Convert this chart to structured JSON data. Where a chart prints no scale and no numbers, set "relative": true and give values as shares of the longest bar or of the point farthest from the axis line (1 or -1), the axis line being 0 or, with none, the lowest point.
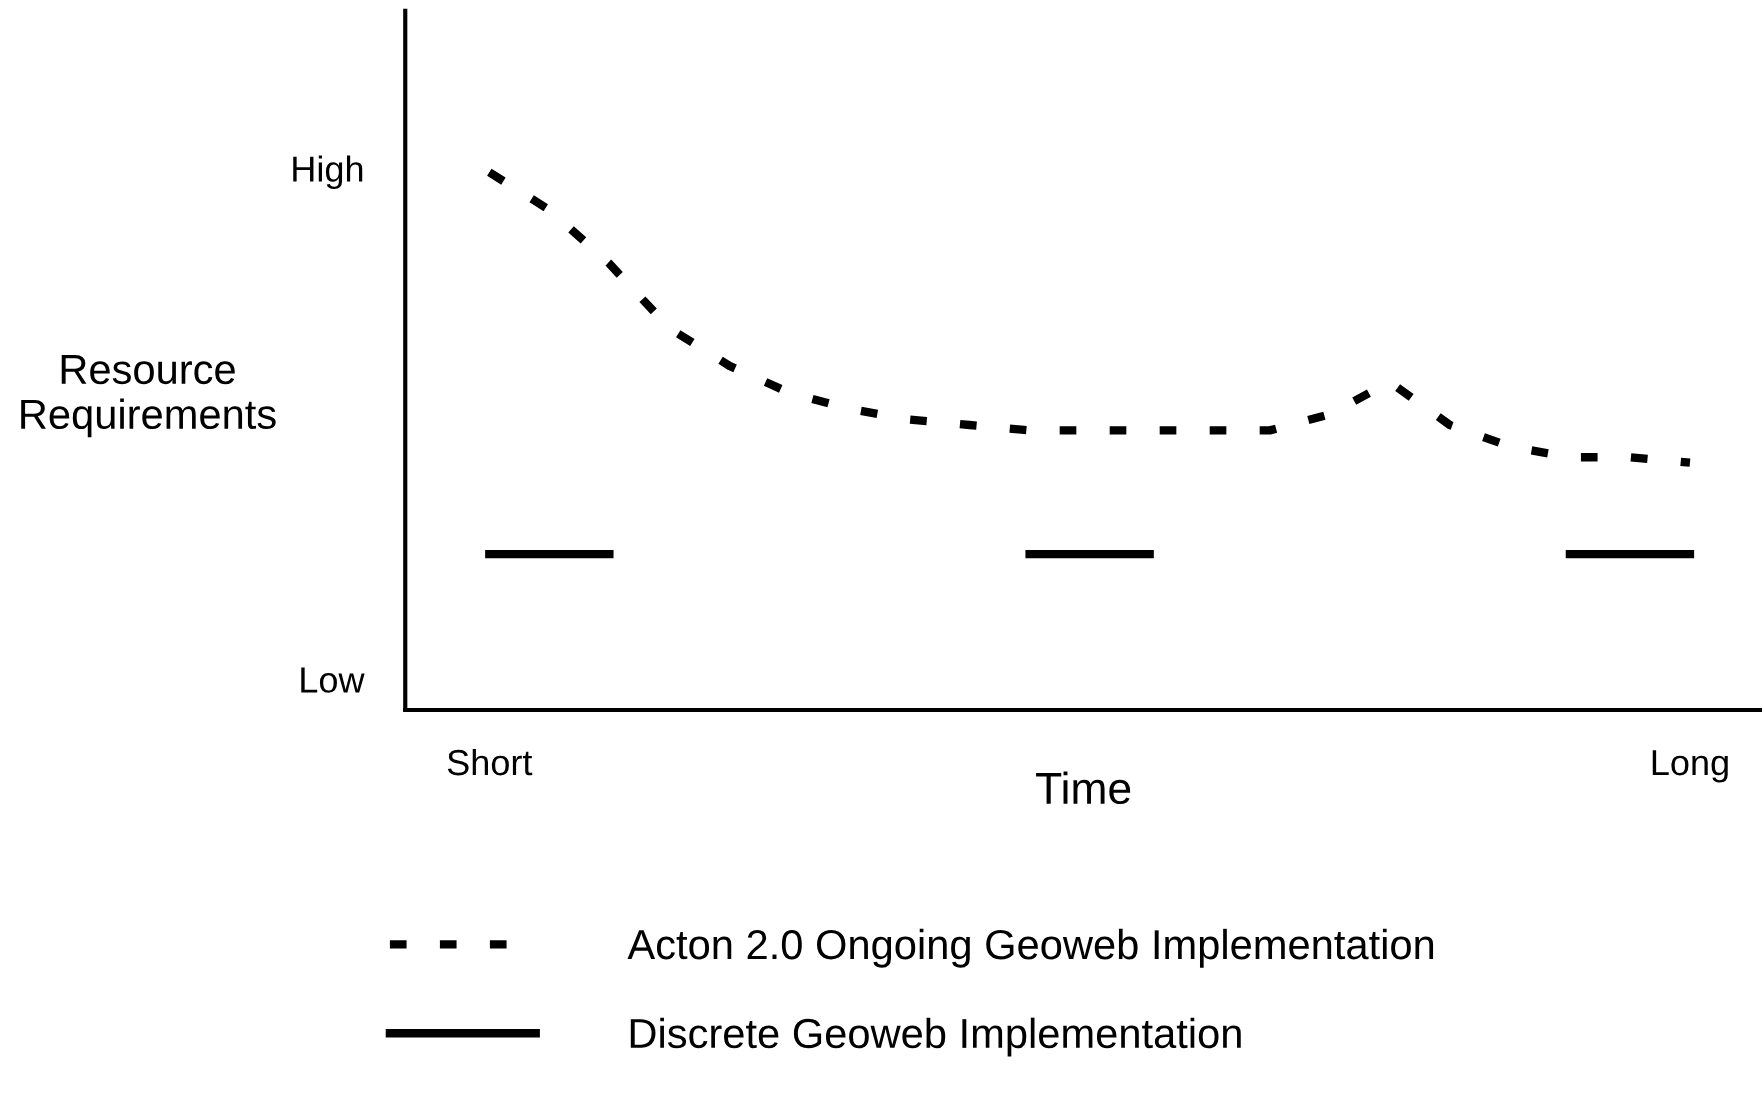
{
  "chart_data": {
    "type": "line",
    "xlabel": "Time",
    "ylabel": "Resource\nRequirements",
    "relative": true,
    "categories": [
      "Short",
      null,
      null,
      null,
      null,
      null,
      null,
      null,
      null,
      null,
      null,
      null,
      null,
      null,
      null,
      null,
      null,
      null,
      null,
      null,
      "Long"
    ],
    "annotations": [
      "High",
      "Low"
    ],
    "series": [
      {
        "name": "Acton 2.0 Ongoing Geoweb Implementation",
        "color": "#000000",
        "line_style": "dotted",
        "values": [
          1,
          0.93,
          0.83,
          0.71,
          0.64,
          0.59,
          0.56,
          0.54,
          0.53,
          0.52,
          0.52,
          0.52,
          0.52,
          0.52,
          0.55,
          0.61,
          0.53,
          0.49,
          0.47,
          0.47,
          0.46
        ]
      },
      {
        "name": "Discrete Geoweb Implementation",
        "color": "#000000",
        "line_style": "solid",
        "values": [
          0.29,
          0.29,
          0.29,
          null,
          null,
          null,
          null,
          null,
          null,
          0.29,
          0.29,
          0.29,
          null,
          null,
          null,
          null,
          null,
          null,
          0.29,
          0.29,
          0.29
        ]
      }
    ],
    "grid": false,
    "legend": "bottom"
  }
}
